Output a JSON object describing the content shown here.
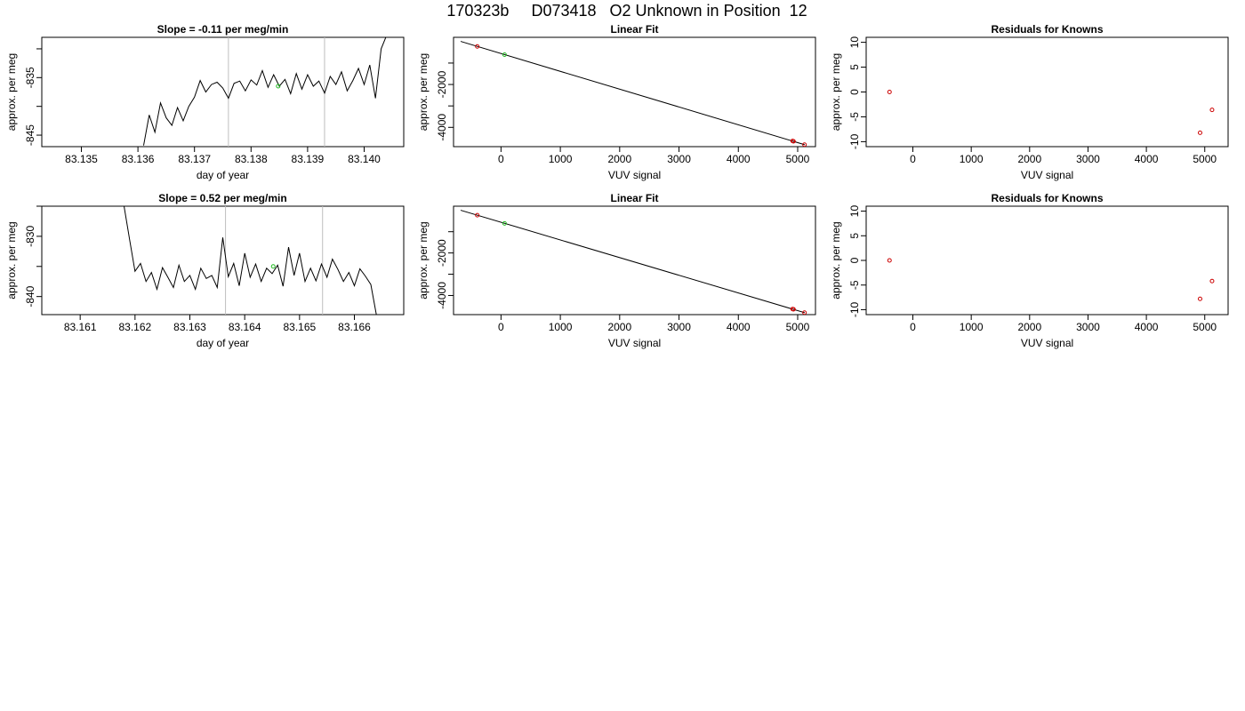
{
  "page": {
    "title": "170323b     D073418   O2 Unknown in Position  12"
  },
  "colors": {
    "line": "#000000",
    "knowns": "#cc0000",
    "unknown": "#22bb22",
    "marker_lines": "#bebebe"
  },
  "chart_data": [
    {
      "id": "slope-top",
      "type": "line",
      "title": "Slope =  -0.11  per meg/min",
      "xlabel": "day of year",
      "ylabel": "approx. per meg",
      "xlim": [
        83.1343,
        83.1407
      ],
      "ylim": [
        -847,
        -828
      ],
      "xticks": [
        83.135,
        83.136,
        83.137,
        83.138,
        83.139,
        83.14
      ],
      "xtick_labels": [
        "83.135",
        "83.136",
        "83.137",
        "83.138",
        "83.139",
        "83.140"
      ],
      "yticks": [
        -845,
        -835
      ],
      "ytick_labels": [
        "-845",
        "-835"
      ],
      "yticks_minor": [
        -840,
        -830
      ],
      "vlines": [
        83.1376,
        83.1393
      ],
      "series": [
        {
          "x": [
            83.1361,
            83.1362,
            83.1363,
            83.1364,
            83.1365,
            83.1366,
            83.1367,
            83.1368,
            83.1369,
            83.137,
            83.1371,
            83.1372,
            83.1373,
            83.1374,
            83.1375,
            83.1376,
            83.1377,
            83.1378,
            83.1379,
            83.138,
            83.1381,
            83.1382,
            83.1383,
            83.1384,
            83.1385,
            83.1386,
            83.1387,
            83.1388,
            83.1389,
            83.139,
            83.1391,
            83.1392,
            83.1393,
            83.1394,
            83.1395,
            83.1396,
            83.1397,
            83.1398,
            83.1399,
            83.14,
            83.1401,
            83.1402,
            83.1403,
            83.1404
          ],
          "y": [
            -846.8,
            -841.5,
            -844.5,
            -839.4,
            -842,
            -843.3,
            -840.2,
            -842.5,
            -840,
            -838.4,
            -835.5,
            -837.5,
            -836.2,
            -835.8,
            -836.8,
            -838.6,
            -836,
            -835.6,
            -837.3,
            -835.4,
            -836.3,
            -833.8,
            -836.7,
            -834.5,
            -836.5,
            -835.3,
            -837.8,
            -834.3,
            -837,
            -834.5,
            -836.5,
            -835.6,
            -837.7,
            -834.8,
            -836.2,
            -834,
            -837.3,
            -835.5,
            -833.4,
            -836.2,
            -832.8,
            -838.6,
            -830,
            -827.6
          ]
        }
      ],
      "unknown_point": {
        "x": 83.13848,
        "y": -836.5
      }
    },
    {
      "id": "fit-top",
      "type": "scatter",
      "title": "Linear Fit",
      "xlabel": "VUV signal",
      "ylabel": "approx. per meg",
      "xlim": [
        -800,
        5300
      ],
      "ylim": [
        -4900,
        200
      ],
      "xticks": [
        0,
        1000,
        2000,
        3000,
        4000,
        5000
      ],
      "xtick_labels": [
        "0",
        "1000",
        "2000",
        "3000",
        "4000",
        "5000"
      ],
      "yticks": [
        -4000,
        -2000
      ],
      "ytick_labels": [
        "-4000",
        "-2000"
      ],
      "yticks_minor": [
        -3000,
        -1000
      ],
      "fit_line": {
        "x": [
          -680,
          5120
        ],
        "y": [
          10,
          -4812
        ]
      },
      "knowns": {
        "x": [
          -400,
          4915,
          4930,
          5115
        ],
        "y": [
          -225,
          -4637,
          -4650,
          -4805
        ]
      },
      "unknown": {
        "x": [
          60
        ],
        "y": [
          -610
        ]
      }
    },
    {
      "id": "resid-top",
      "type": "scatter",
      "title": "Residuals for Knowns",
      "xlabel": "VUV signal",
      "ylabel": "approx. per meg",
      "xlim": [
        -800,
        5400
      ],
      "ylim": [
        -11,
        11
      ],
      "xticks": [
        0,
        1000,
        2000,
        3000,
        4000,
        5000
      ],
      "xtick_labels": [
        "0",
        "1000",
        "2000",
        "3000",
        "4000",
        "5000"
      ],
      "yticks": [
        -10,
        -5,
        0,
        5,
        10
      ],
      "ytick_labels": [
        "-10",
        "-5",
        "0",
        "5",
        "10"
      ],
      "knowns": {
        "x": [
          -400,
          4920,
          5125
        ],
        "y": [
          0,
          -8.2,
          -3.6
        ]
      }
    },
    {
      "id": "slope-bottom",
      "type": "line",
      "title": "Slope =  0.52  per meg/min",
      "xlabel": "day of year",
      "ylabel": "approx. per meg",
      "xlim": [
        83.1603,
        83.1669
      ],
      "ylim": [
        -843,
        -825
      ],
      "xticks": [
        83.161,
        83.162,
        83.163,
        83.164,
        83.165,
        83.166
      ],
      "xtick_labels": [
        "83.161",
        "83.162",
        "83.163",
        "83.164",
        "83.165",
        "83.166"
      ],
      "yticks": [
        -840,
        -830
      ],
      "ytick_labels": [
        "-840",
        "-830"
      ],
      "yticks_minor": [
        -835,
        -825
      ],
      "vlines": [
        83.16365,
        83.16542
      ],
      "series": [
        {
          "x": [
            83.1618,
            83.1619,
            83.162,
            83.1621,
            83.1622,
            83.1623,
            83.1624,
            83.1625,
            83.1626,
            83.1627,
            83.1628,
            83.1629,
            83.163,
            83.1631,
            83.1632,
            83.1633,
            83.1634,
            83.1635,
            83.1636,
            83.1637,
            83.1638,
            83.1639,
            83.164,
            83.1641,
            83.1642,
            83.1643,
            83.1644,
            83.1645,
            83.1646,
            83.1647,
            83.1648,
            83.1649,
            83.165,
            83.1651,
            83.1652,
            83.1653,
            83.1654,
            83.1655,
            83.1656,
            83.1657,
            83.1658,
            83.1659,
            83.166,
            83.1661,
            83.1662,
            83.1663,
            83.1664
          ],
          "y": [
            -825,
            -830.5,
            -835.8,
            -834.5,
            -837.5,
            -836,
            -838.8,
            -835.2,
            -836.8,
            -838.5,
            -834.8,
            -837.5,
            -836.5,
            -838.8,
            -835.3,
            -837,
            -836.5,
            -838.5,
            -830.2,
            -836.7,
            -834.5,
            -838.2,
            -832.8,
            -836.8,
            -834.6,
            -837.5,
            -835.3,
            -836.2,
            -834.8,
            -838.3,
            -831.8,
            -836.5,
            -832.8,
            -837.5,
            -835.3,
            -837.4,
            -834.6,
            -836.8,
            -833.8,
            -835.5,
            -837.5,
            -836,
            -838.2,
            -835.4,
            -836.6,
            -838,
            -843
          ]
        }
      ],
      "unknown_point": {
        "x": 83.16452,
        "y": -835
      }
    },
    {
      "id": "fit-bottom",
      "type": "scatter",
      "title": "Linear Fit",
      "xlabel": "VUV signal",
      "ylabel": "approx. per meg",
      "xlim": [
        -800,
        5300
      ],
      "ylim": [
        -4900,
        200
      ],
      "xticks": [
        0,
        1000,
        2000,
        3000,
        4000,
        5000
      ],
      "xtick_labels": [
        "0",
        "1000",
        "2000",
        "3000",
        "4000",
        "5000"
      ],
      "yticks": [
        -4000,
        -2000
      ],
      "ytick_labels": [
        "-4000",
        "-2000"
      ],
      "yticks_minor": [
        -3000,
        -1000
      ],
      "fit_line": {
        "x": [
          -680,
          5120
        ],
        "y": [
          10,
          -4812
        ]
      },
      "knowns": {
        "x": [
          -400,
          4915,
          4930,
          5115
        ],
        "y": [
          -225,
          -4637,
          -4650,
          -4805
        ]
      },
      "unknown": {
        "x": [
          60
        ],
        "y": [
          -610
        ]
      }
    },
    {
      "id": "resid-bottom",
      "type": "scatter",
      "title": "Residuals for Knowns",
      "xlabel": "VUV signal",
      "ylabel": "approx. per meg",
      "xlim": [
        -800,
        5400
      ],
      "ylim": [
        -11,
        11
      ],
      "xticks": [
        0,
        1000,
        2000,
        3000,
        4000,
        5000
      ],
      "xtick_labels": [
        "0",
        "1000",
        "2000",
        "3000",
        "4000",
        "5000"
      ],
      "yticks": [
        -10,
        -5,
        0,
        5,
        10
      ],
      "ytick_labels": [
        "-10",
        "-5",
        "0",
        "5",
        "10"
      ],
      "knowns": {
        "x": [
          -400,
          4920,
          5125
        ],
        "y": [
          0,
          -7.8,
          -4.2
        ]
      }
    }
  ]
}
